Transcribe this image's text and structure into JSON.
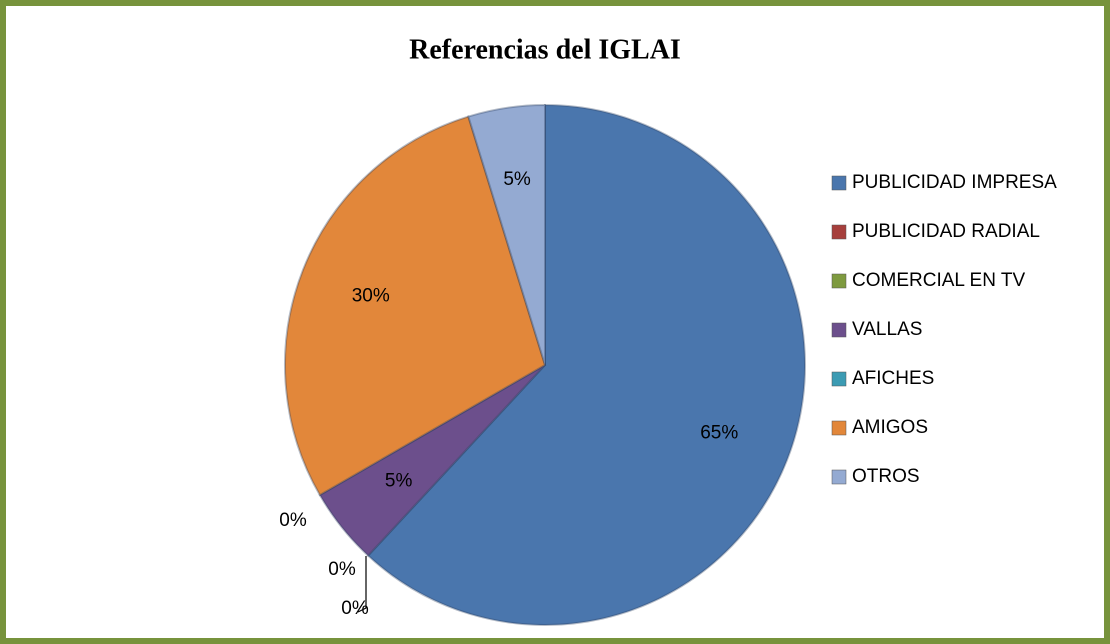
{
  "chart_data": {
    "type": "pie",
    "title": "Referencias del IGLAI",
    "categories": [
      "PUBLICIDAD IMPRESA",
      "PUBLICIDAD RADIAL",
      "COMERCIAL EN TV",
      "VALLAS",
      "AFICHES",
      "AMIGOS",
      "OTROS"
    ],
    "values": [
      65,
      0,
      0,
      5,
      0,
      30,
      5
    ],
    "value_labels": [
      "65%",
      "0%",
      "0%",
      "5%",
      "0%",
      "30%",
      "5%"
    ],
    "colors": [
      "#4a76ad",
      "#a63f3c",
      "#7e9a3f",
      "#6c4f8c",
      "#3c9bb3",
      "#e2873a",
      "#94aad2"
    ],
    "legend": "right"
  }
}
